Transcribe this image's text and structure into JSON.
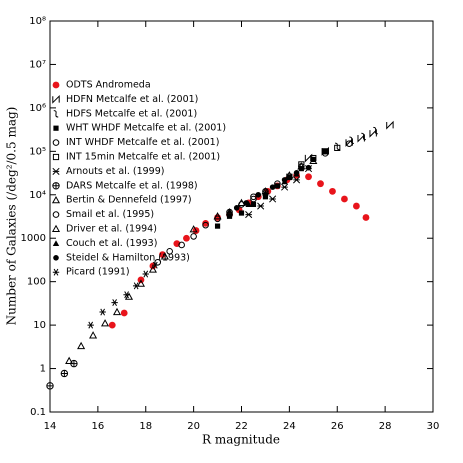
{
  "chart_data": {
    "type": "scatter",
    "x_label": "R magnitude",
    "y_label": "Number of Galaxies (/deg²/0.5 mag)",
    "log_y": true,
    "xlim": [
      14,
      30
    ],
    "xticks": [
      14,
      16,
      18,
      20,
      22,
      24,
      26,
      28,
      30
    ],
    "ylim": [
      0.1,
      100000000
    ],
    "yticks": [
      0.1,
      1,
      10,
      100,
      1000,
      {
        "value": 10000,
        "label": "10⁴"
      },
      {
        "value": 100000,
        "label": "10⁵"
      },
      {
        "value": 1000000,
        "label": "10⁶"
      },
      {
        "value": 10000000,
        "label": "10⁷"
      },
      {
        "value": 100000000,
        "label": "10⁸"
      }
    ],
    "legend": "upper-left",
    "series": [
      {
        "name": "ODTS Andromeda",
        "color": "#e8141b",
        "marker": "filled-circle",
        "x": [
          16.6,
          17.1,
          17.8,
          18.3,
          18.7,
          19.3,
          19.7,
          20.1,
          20.5,
          21.0,
          21.5,
          21.9,
          22.3,
          22.7,
          23.1,
          23.5,
          23.9,
          24.3,
          24.8,
          25.3,
          25.8,
          26.3,
          26.8,
          27.2
        ],
        "values": [
          10,
          19,
          110,
          230,
          420,
          750,
          1000,
          1500,
          2200,
          3000,
          3500,
          4500,
          6500,
          9000,
          12000,
          16000,
          22000,
          28000,
          26000,
          18000,
          12000,
          8000,
          5500,
          3000
        ]
      },
      {
        "name": "HDFN Metcalfe et al. (2001)",
        "color": "#000000",
        "marker": "hourglass",
        "x": [
          24.8,
          25.5,
          26.5,
          27.0,
          27.5,
          28.2
        ],
        "values": [
          70000,
          100000,
          160000,
          200000,
          260000,
          400000
        ]
      },
      {
        "name": "HDFS Metcalfe et al. (2001)",
        "color": "#000000",
        "marker": "cross",
        "x": [
          26.0,
          26.6,
          27.1,
          27.6
        ],
        "values": [
          130000,
          180000,
          220000,
          300000
        ]
      },
      {
        "name": "WHT WHDF Metcalfe et al. (2001)",
        "color": "#000000",
        "marker": "filled-square",
        "x": [
          21.0,
          21.5,
          22.0,
          22.5,
          23.0,
          23.5,
          24.0,
          24.5,
          25.0,
          25.5
        ],
        "values": [
          1900,
          3200,
          3800,
          6000,
          9000,
          16000,
          25000,
          40000,
          65000,
          100000
        ]
      },
      {
        "name": "INT WHDF Metcalfe et al. (2001)",
        "color": "#000000",
        "marker": "open-circle",
        "x": [
          18.5,
          19.0,
          19.5,
          20.0,
          20.5,
          21.0,
          21.5,
          22.0,
          22.5,
          23.0
        ],
        "values": [
          280,
          500,
          700,
          1100,
          2000,
          2800,
          4000,
          6000,
          9000,
          12000
        ]
      },
      {
        "name": "INT 15min  Metcalfe et al. (2001)",
        "color": "#000000",
        "marker": "open-square",
        "x": [
          24.0,
          24.5,
          25.0,
          25.5,
          26.0
        ],
        "values": [
          26000,
          50000,
          70000,
          100000,
          120000
        ]
      },
      {
        "name": "Arnouts et al. (1999)",
        "color": "#000000",
        "marker": "x",
        "x": [
          22.3,
          22.8,
          23.3,
          23.8,
          24.3,
          24.8
        ],
        "values": [
          3500,
          5500,
          8000,
          15000,
          22000,
          40000
        ]
      },
      {
        "name": "DARS Metcalfe et al. (1998)",
        "color": "#000000",
        "marker": "circle-cross",
        "x": [
          14.0,
          14.6,
          15.0
        ],
        "values": [
          0.4,
          0.77,
          1.3
        ]
      },
      {
        "name": "Bertin & Dennefeld (1997)",
        "color": "#000000",
        "marker": "open-triangle",
        "x": [
          14.8,
          15.3,
          15.8,
          16.3,
          16.8,
          17.3,
          17.8,
          18.3,
          18.8
        ],
        "values": [
          1.5,
          3.3,
          5.8,
          11,
          20,
          45,
          90,
          190,
          380
        ]
      },
      {
        "name": "Smail et al. (1995)",
        "color": "#000000",
        "marker": "open-circle",
        "x": [
          21.5,
          22.5,
          23.5,
          24.5,
          25.5,
          26.5
        ],
        "values": [
          3500,
          8000,
          18000,
          45000,
          90000,
          150000
        ]
      },
      {
        "name": "Driver et al. (1994)",
        "color": "#000000",
        "marker": "open-triangle",
        "x": [
          20.0,
          21.0,
          22.0,
          23.0,
          24.0,
          24.5,
          25.0
        ],
        "values": [
          1600,
          3200,
          6500,
          12000,
          28000,
          45000,
          60000
        ]
      },
      {
        "name": "Couch et al. (1993)",
        "color": "#000000",
        "marker": "filled-triangle",
        "x": [
          21.5,
          22.3,
          23.0,
          23.8,
          24.3
        ],
        "values": [
          4200,
          6000,
          11000,
          20000,
          30000
        ]
      },
      {
        "name": "Steidel & Hamilton (1993)",
        "color": "#000000",
        "marker": "filled-circle",
        "x": [
          21.8,
          22.2,
          22.7,
          23.3,
          23.8,
          24.3,
          24.8
        ],
        "values": [
          5000,
          6500,
          10000,
          15000,
          22000,
          32000,
          42000
        ]
      },
      {
        "name": "Picard (1991)",
        "color": "#000000",
        "marker": "asterisk",
        "x": [
          15.7,
          16.2,
          16.7,
          17.2,
          17.6,
          18.0,
          18.4
        ],
        "values": [
          10,
          20,
          33,
          50,
          80,
          150,
          240
        ]
      }
    ]
  }
}
